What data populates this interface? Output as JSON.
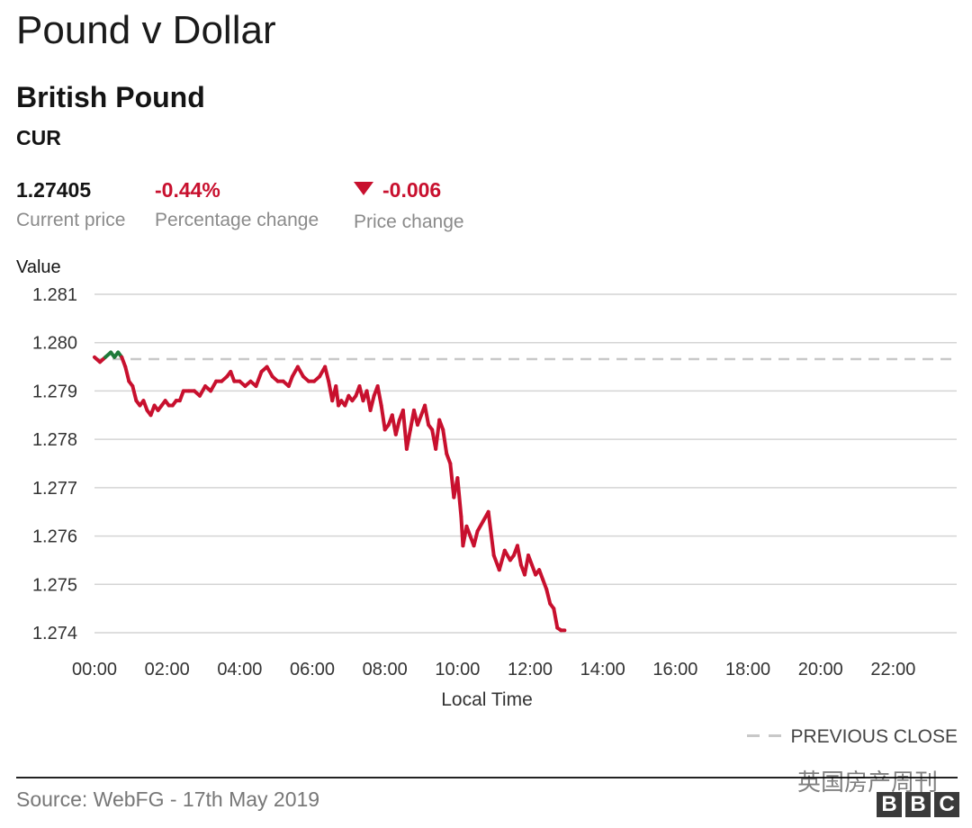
{
  "header": {
    "title": "Pound v Dollar",
    "subtitle": "British Pound",
    "code": "CUR"
  },
  "stats": {
    "current_price": "1.27405",
    "current_price_label": "Current price",
    "percent_change": "-0.44%",
    "percent_change_label": "Percentage change",
    "price_change": "-0.006",
    "price_change_label": "Price change",
    "change_direction": "down"
  },
  "footer": {
    "source": "Source: WebFG - 17th May 2019",
    "legend_previous_close": "PREVIOUS CLOSE",
    "watermark": "英国房产周刊",
    "logo_text": "BBC"
  },
  "colors": {
    "down": "#c8102e",
    "up": "#1f7a3a",
    "previous_close": "#c8c8c8",
    "grid": "#d4d4d4"
  },
  "chart_data": {
    "type": "line",
    "ylabel": "Value",
    "xlabel": "Local Time",
    "ylim": [
      1.274,
      1.281
    ],
    "yticks": [
      "1.281",
      "1.280",
      "1.279",
      "1.278",
      "1.277",
      "1.276",
      "1.275",
      "1.274"
    ],
    "xlim_hours": [
      0,
      23.75
    ],
    "xticks": [
      "00:00",
      "02:00",
      "04:00",
      "06:00",
      "08:00",
      "10:00",
      "12:00",
      "14:00",
      "16:00",
      "18:00",
      "20:00",
      "22:00"
    ],
    "previous_close": 1.27966,
    "grid": true,
    "legend_position": "bottom-right",
    "series": [
      {
        "x_hours": [
          0,
          0.15,
          0.3,
          0.45,
          0.55,
          0.65,
          0.75,
          0.85,
          0.95,
          1.05,
          1.15,
          1.25,
          1.35,
          1.45,
          1.55,
          1.65,
          1.75,
          1.85,
          1.95,
          2.05,
          2.15,
          2.25,
          2.35,
          2.45,
          2.6,
          2.75,
          2.9,
          3.05,
          3.2,
          3.35,
          3.5,
          3.65,
          3.75,
          3.85,
          4.0,
          4.15,
          4.3,
          4.45,
          4.6,
          4.75,
          4.9,
          5.05,
          5.2,
          5.35,
          5.45,
          5.6,
          5.75,
          5.9,
          6.05,
          6.2,
          6.35,
          6.45,
          6.55,
          6.65,
          6.72,
          6.8,
          6.9,
          7.0,
          7.1,
          7.2,
          7.3,
          7.4,
          7.5,
          7.6,
          7.7,
          7.8,
          7.9,
          8.0,
          8.1,
          8.2,
          8.3,
          8.4,
          8.5,
          8.6,
          8.7,
          8.8,
          8.9,
          9.0,
          9.1,
          9.2,
          9.3,
          9.4,
          9.5,
          9.6,
          9.7,
          9.8,
          9.9,
          10.0,
          10.1,
          10.15,
          10.25,
          10.35,
          10.45,
          10.55,
          10.7,
          10.85,
          11.0,
          11.15,
          11.3,
          11.45,
          11.55,
          11.65,
          11.75,
          11.85,
          11.95,
          12.05,
          12.15,
          12.25,
          12.35,
          12.45,
          12.55,
          12.65,
          12.75,
          12.85,
          12.95
        ],
        "values": [
          1.2797,
          1.2796,
          1.2797,
          1.2798,
          1.2797,
          1.2798,
          1.2797,
          1.2795,
          1.2792,
          1.2791,
          1.2788,
          1.2787,
          1.2788,
          1.2786,
          1.2785,
          1.2787,
          1.2786,
          1.2787,
          1.2788,
          1.2787,
          1.2787,
          1.2788,
          1.2788,
          1.279,
          1.279,
          1.279,
          1.2789,
          1.2791,
          1.279,
          1.2792,
          1.2792,
          1.2793,
          1.2794,
          1.2792,
          1.2792,
          1.2791,
          1.2792,
          1.2791,
          1.2794,
          1.2795,
          1.2793,
          1.2792,
          1.2792,
          1.2791,
          1.2793,
          1.2795,
          1.2793,
          1.2792,
          1.2792,
          1.2793,
          1.2795,
          1.2792,
          1.2788,
          1.2791,
          1.2787,
          1.2788,
          1.2787,
          1.2789,
          1.2788,
          1.2789,
          1.2791,
          1.2788,
          1.279,
          1.2786,
          1.2789,
          1.2791,
          1.2787,
          1.2782,
          1.2783,
          1.2785,
          1.2781,
          1.2784,
          1.2786,
          1.2778,
          1.2782,
          1.2786,
          1.2783,
          1.2785,
          1.2787,
          1.2783,
          1.2782,
          1.2778,
          1.2784,
          1.2782,
          1.2777,
          1.2775,
          1.2768,
          1.2772,
          1.2764,
          1.2758,
          1.2762,
          1.276,
          1.2758,
          1.2761,
          1.2763,
          1.2765,
          1.2756,
          1.2753,
          1.2757,
          1.2755,
          1.2756,
          1.2758,
          1.2754,
          1.2752,
          1.2756,
          1.2754,
          1.2752,
          1.2753,
          1.2751,
          1.2749,
          1.2746,
          1.2745,
          1.2741,
          1.27405,
          1.27405
        ]
      }
    ]
  }
}
